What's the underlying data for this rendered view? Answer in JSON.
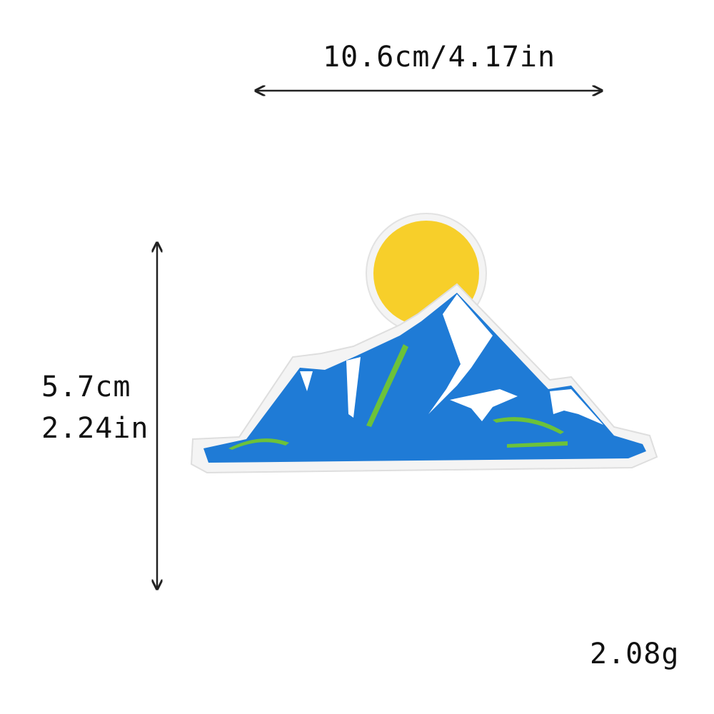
{
  "product": {
    "width_label": "10.6cm/4.17in",
    "height_cm_label": "5.7cm",
    "height_in_label": "2.24in",
    "weight_label": "2.08g"
  },
  "colors": {
    "sky_blue": "#1f7bd6",
    "sun_yellow": "#f7cf2a",
    "grass_green": "#6cc23a",
    "snow_white": "#ffffff",
    "border_white": "#f4f4f4",
    "arrow": "#222222"
  },
  "icons": [
    "mountain-patch",
    "sun",
    "double-arrow-horizontal",
    "double-arrow-vertical"
  ]
}
